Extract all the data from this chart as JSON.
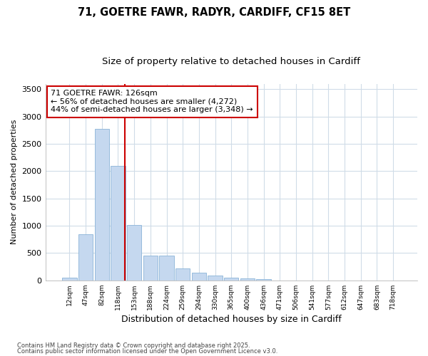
{
  "title1": "71, GOETRE FAWR, RADYR, CARDIFF, CF15 8ET",
  "title2": "Size of property relative to detached houses in Cardiff",
  "xlabel": "Distribution of detached houses by size in Cardiff",
  "ylabel": "Number of detached properties",
  "footnote1": "Contains HM Land Registry data © Crown copyright and database right 2025.",
  "footnote2": "Contains public sector information licensed under the Open Government Licence v3.0.",
  "annotation_line1": "71 GOETRE FAWR: 126sqm",
  "annotation_line2": "← 56% of detached houses are smaller (4,272)",
  "annotation_line3": "44% of semi-detached houses are larger (3,348) →",
  "categories": [
    "12sqm",
    "47sqm",
    "82sqm",
    "118sqm",
    "153sqm",
    "188sqm",
    "224sqm",
    "259sqm",
    "294sqm",
    "330sqm",
    "365sqm",
    "400sqm",
    "436sqm",
    "471sqm",
    "506sqm",
    "541sqm",
    "577sqm",
    "612sqm",
    "647sqm",
    "683sqm",
    "718sqm"
  ],
  "values": [
    55,
    840,
    2770,
    2100,
    1020,
    455,
    455,
    220,
    145,
    85,
    55,
    40,
    20,
    0,
    0,
    0,
    0,
    0,
    0,
    0,
    0
  ],
  "bar_color": "#c5d8ef",
  "bar_edge_color": "#8ab4d8",
  "red_line_x": 3.42,
  "red_line_color": "#cc0000",
  "annotation_box_edge": "#cc0000",
  "annotation_box_face": "#ffffff",
  "ylim": [
    0,
    3600
  ],
  "yticks": [
    0,
    500,
    1000,
    1500,
    2000,
    2500,
    3000,
    3500
  ],
  "bg_color": "#ffffff",
  "grid_color": "#d0dce8",
  "title1_fontsize": 10.5,
  "title2_fontsize": 9.5,
  "xlabel_fontsize": 9,
  "ylabel_fontsize": 8,
  "annot_fontsize": 8
}
